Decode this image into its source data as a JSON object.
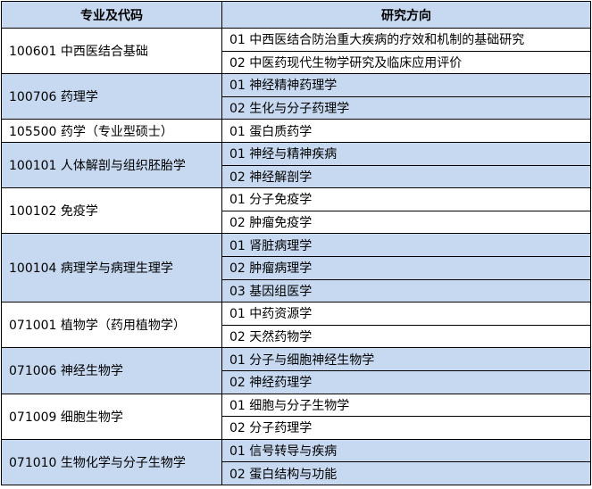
{
  "header": {
    "major": "专业及代码",
    "direction": "研究方向"
  },
  "colors": {
    "header_bg": "#c6d9f0",
    "shaded_bg": "#c6d9f0"
  },
  "groups": [
    {
      "major": "100601 中西医结合基础",
      "shaded": false,
      "directions": [
        "01 中西医结合防治重大疾病的疗效和机制的基础研究",
        "02 中医药现代生物学研究及临床应用评价"
      ]
    },
    {
      "major": "100706 药理学",
      "shaded": true,
      "directions": [
        "01 神经精神药理学",
        "02 生化与分子药理学"
      ]
    },
    {
      "major": "105500 药学（专业型硕士）",
      "shaded": false,
      "directions": [
        "01 蛋白质药学"
      ]
    },
    {
      "major": "100101 人体解剖与组织胚胎学",
      "shaded": true,
      "directions": [
        "01 神经与精神疾病",
        "02 神经解剖学"
      ]
    },
    {
      "major": "100102 免疫学",
      "shaded": false,
      "directions": [
        "01 分子免疫学",
        "02 肿瘤免疫学"
      ]
    },
    {
      "major": "100104 病理学与病理生理学",
      "shaded": true,
      "directions": [
        "01 肾脏病理学",
        "02 肿瘤病理学",
        "03 基因组医学"
      ]
    },
    {
      "major": "071001 植物学（药用植物学）",
      "shaded": false,
      "directions": [
        "01 中药资源学",
        "02 天然药物学"
      ]
    },
    {
      "major": "071006 神经生物学",
      "shaded": true,
      "directions": [
        "01 分子与细胞神经生物学",
        "02 神经药理学"
      ]
    },
    {
      "major": "071009 细胞生物学",
      "shaded": false,
      "directions": [
        "01 细胞与分子生物学",
        "02 分子药理学"
      ]
    },
    {
      "major": "071010 生物化学与分子生物学",
      "shaded": true,
      "directions": [
        "01 信号转导与疾病",
        "02 蛋白结构与功能"
      ]
    }
  ]
}
